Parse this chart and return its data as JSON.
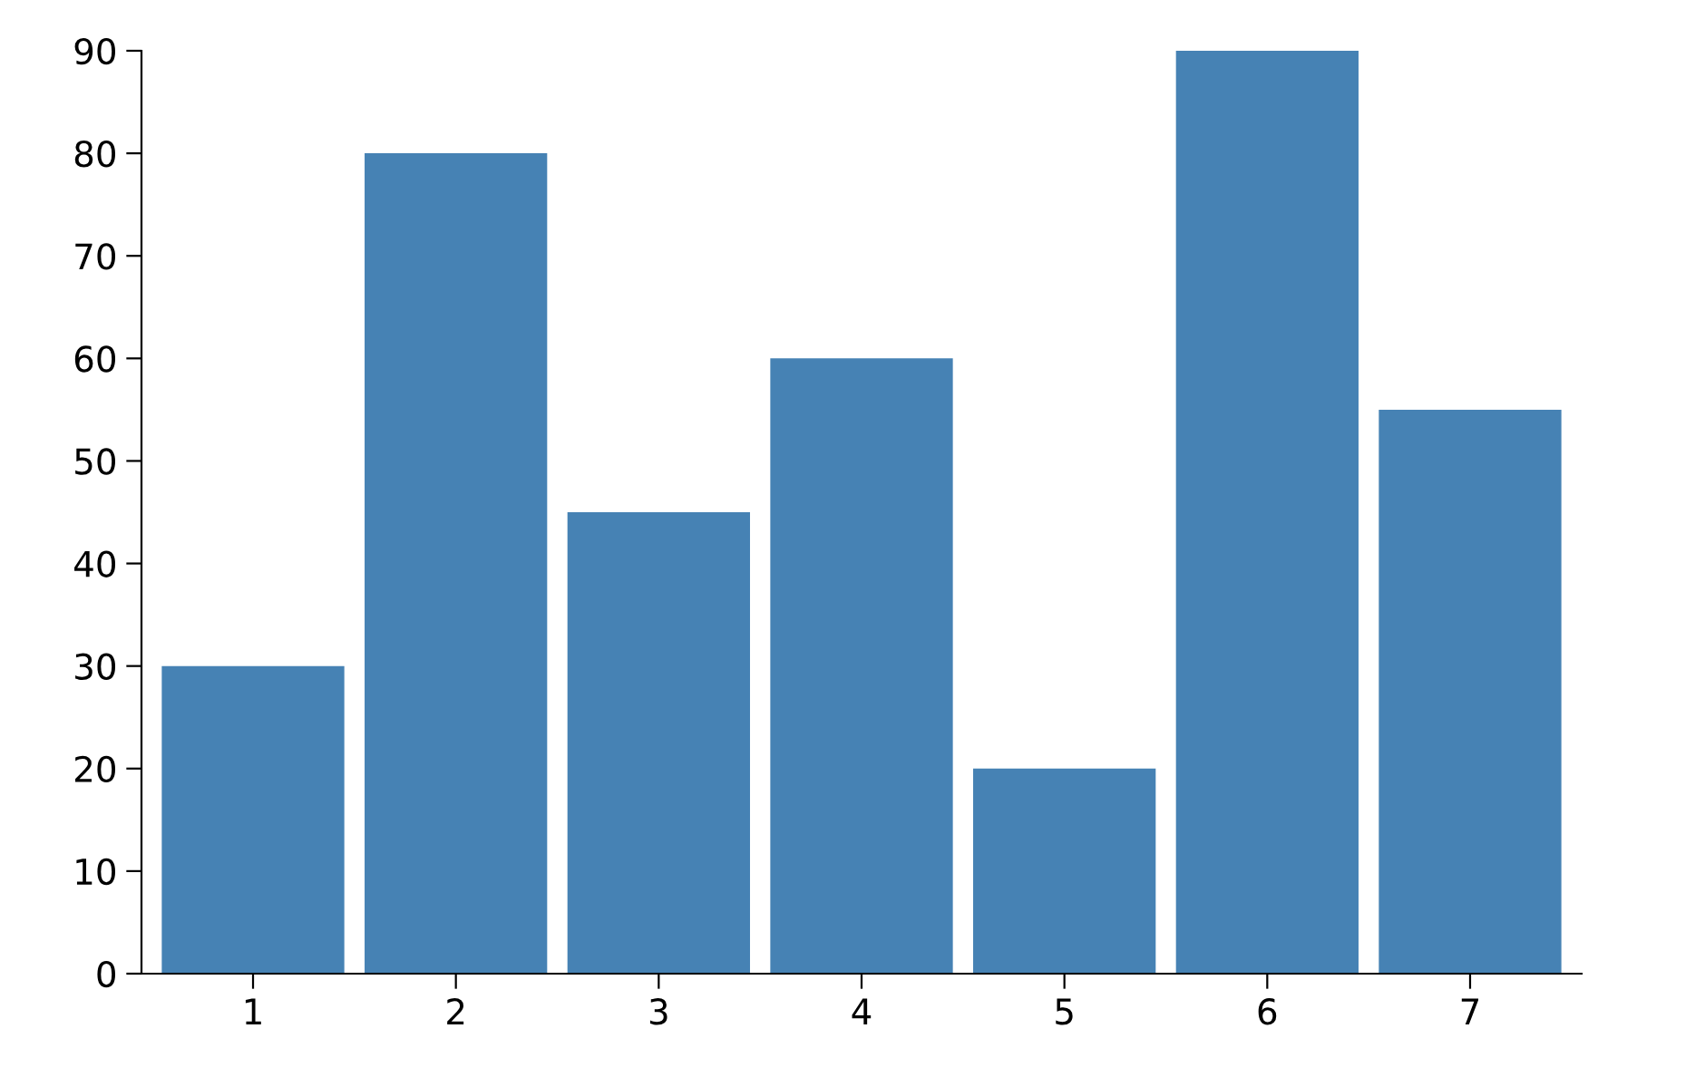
{
  "chart_data": {
    "type": "bar",
    "categories": [
      "1",
      "2",
      "3",
      "4",
      "5",
      "6",
      "7"
    ],
    "values": [
      30,
      80,
      45,
      60,
      20,
      90,
      55
    ],
    "color": "#4682b4",
    "ylim": [
      0,
      90
    ],
    "yticks": [
      0,
      10,
      20,
      30,
      40,
      50,
      60,
      70,
      80,
      90
    ],
    "grid": false
  }
}
